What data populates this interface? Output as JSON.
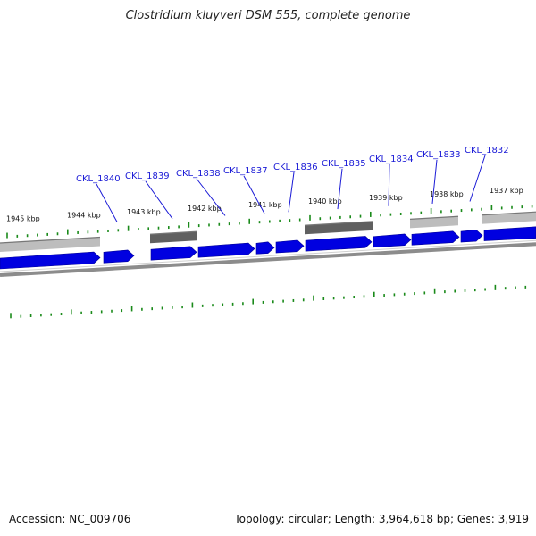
{
  "title": "Clostridium kluyveri DSM 555, complete genome",
  "footer": {
    "accession": "Accession: NC_009706",
    "summary": "Topology: circular; Length: 3,964,618 bp; Genes: 3,919"
  },
  "colors": {
    "gene_forward": "#0000e0",
    "gene_label": "#1a1ad6",
    "tick": "#1a8a1a",
    "backbone": "#8c8c8c",
    "feature_light": "#bdbdbd",
    "feature_dark": "#606060"
  },
  "kbp_labels": [
    "1945 kbp",
    "1944 kbp",
    "1943 kbp",
    "1942 kbp",
    "1941 kbp",
    "1940 kbp",
    "1939 kbp",
    "1938 kbp",
    "1937 kbp"
  ],
  "gene_labels": [
    "CKL_1840",
    "CKL_1839",
    "CKL_1838",
    "CKL_1837",
    "CKL_1836",
    "CKL_1835",
    "CKL_1834",
    "CKL_1833",
    "CKL_1832"
  ]
}
